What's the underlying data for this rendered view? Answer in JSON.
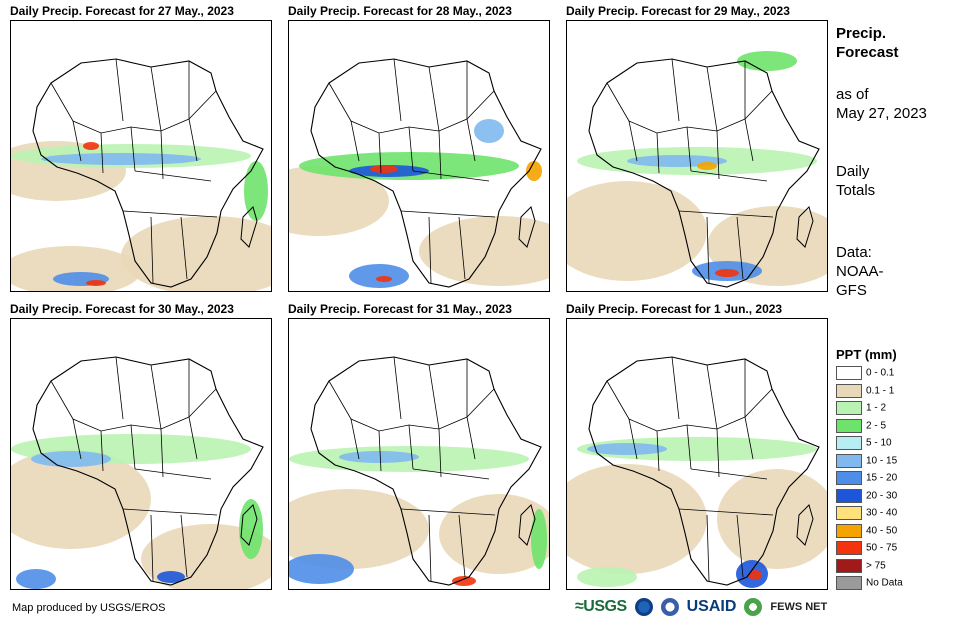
{
  "panels": [
    {
      "title": "Daily Precip. Forecast for 27 May., 2023"
    },
    {
      "title": "Daily Precip. Forecast for 28 May., 2023"
    },
    {
      "title": "Daily Precip. Forecast for 29 May., 2023"
    },
    {
      "title": "Daily Precip. Forecast for 30 May., 2023"
    },
    {
      "title": "Daily Precip. Forecast for 31 May., 2023"
    },
    {
      "title": "Daily Precip. Forecast for 1 Jun., 2023"
    }
  ],
  "sidebar": {
    "title_line1": "Precip.",
    "title_line2": "Forecast",
    "asof_line1": "as of",
    "asof_line2": "May 27, 2023",
    "daily_line1": "Daily",
    "daily_line2": "Totals",
    "data_line1": "Data:",
    "data_line2": "NOAA-",
    "data_line3": "GFS"
  },
  "legend": {
    "title": "PPT (mm)",
    "items": [
      {
        "label": "0 - 0.1",
        "color": "#ffffff"
      },
      {
        "label": "0.1 - 1",
        "color": "#e9d8b8"
      },
      {
        "label": "1 - 2",
        "color": "#b9f3b1"
      },
      {
        "label": "2 - 5",
        "color": "#6ee36b"
      },
      {
        "label": "5 - 10",
        "color": "#b6eef4"
      },
      {
        "label": "10 - 15",
        "color": "#7fb9f0"
      },
      {
        "label": "15 - 20",
        "color": "#4f8ee8"
      },
      {
        "label": "20 - 30",
        "color": "#1d56d9"
      },
      {
        "label": "30 - 40",
        "color": "#ffe07a"
      },
      {
        "label": "40 - 50",
        "color": "#f5a300"
      },
      {
        "label": "50 - 75",
        "color": "#f2330d"
      },
      {
        "label": "> 75",
        "color": "#a11a1a"
      },
      {
        "label": "No Data",
        "color": "#9a9a9a"
      }
    ]
  },
  "footer": {
    "credit": "Map produced by USGS/EROS",
    "logos": {
      "usgs": "≈USGS",
      "usaid": "USAID",
      "fews": "FEWS NET"
    }
  }
}
